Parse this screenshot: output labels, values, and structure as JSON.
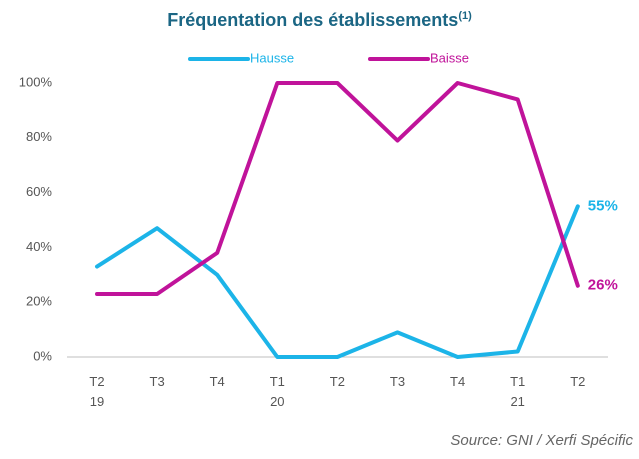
{
  "chart_data": {
    "type": "line",
    "title": "Fréquentation des établissements",
    "title_note": "(1)",
    "categories": [
      "T2\n19",
      "T3",
      "T4",
      "T1\n20",
      "T2",
      "T3",
      "T4",
      "T1\n21",
      "T2"
    ],
    "series": [
      {
        "name": "Hausse",
        "color": "#1cb4e8",
        "values": [
          33,
          47,
          30,
          0,
          0,
          9,
          0,
          2,
          55
        ],
        "value_labels": [
          null,
          null,
          null,
          null,
          null,
          null,
          null,
          null,
          "55%"
        ]
      },
      {
        "name": "Baisse",
        "color": "#c0139a",
        "values": [
          23,
          23,
          38,
          100,
          100,
          79,
          100,
          94,
          26
        ],
        "value_labels": [
          null,
          null,
          null,
          null,
          null,
          null,
          null,
          null,
          "26%"
        ]
      }
    ],
    "ylim": [
      0,
      100
    ],
    "yticks": [
      {
        "value": 0,
        "label": "0%"
      },
      {
        "value": 20,
        "label": "20%"
      },
      {
        "value": 40,
        "label": "40%"
      },
      {
        "value": 60,
        "label": "60%"
      },
      {
        "value": 80,
        "label": "80%"
      },
      {
        "value": 100,
        "label": "100%"
      }
    ],
    "legend": "top",
    "source": "Source: GNI / Xerfi Spécific"
  }
}
